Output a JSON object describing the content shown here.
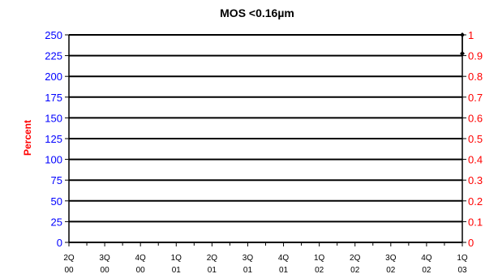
{
  "chart_data": {
    "type": "line",
    "title": "MOS <0.16µm",
    "ylabel": "Percent",
    "ylim_left": [
      0,
      250
    ],
    "ylim_right": [
      0,
      1
    ],
    "left_ticks": [
      "0",
      "25",
      "50",
      "75",
      "100",
      "125",
      "150",
      "175",
      "200",
      "225",
      "250"
    ],
    "right_ticks": [
      "0",
      "0.1",
      "0.2",
      "0.3",
      "0.4",
      "0.5",
      "0.6",
      "0.7",
      "0.8",
      "0.9",
      "1"
    ],
    "categories": [
      [
        "2Q",
        "00"
      ],
      [
        "3Q",
        "00"
      ],
      [
        "4Q",
        "00"
      ],
      [
        "1Q",
        "01"
      ],
      [
        "2Q",
        "01"
      ],
      [
        "3Q",
        "01"
      ],
      [
        "4Q",
        "01"
      ],
      [
        "1Q",
        "02"
      ],
      [
        "2Q",
        "02"
      ],
      [
        "3Q",
        "02"
      ],
      [
        "4Q",
        "02"
      ],
      [
        "1Q",
        "03"
      ]
    ],
    "series": [
      {
        "axis": "right",
        "points": [
          {
            "x": "1Q 03",
            "y": 1.0
          },
          {
            "x": "1Q 03",
            "y": 0.91
          }
        ]
      }
    ],
    "grid": true,
    "colors": {
      "left_axis": "#0000ff",
      "right_axis": "#ff0000",
      "series": "#000000"
    }
  }
}
